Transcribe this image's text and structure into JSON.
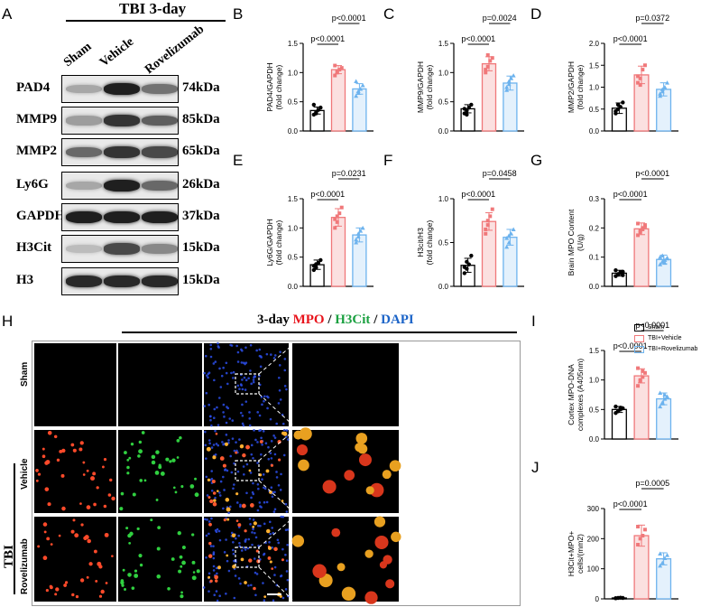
{
  "panels": {
    "A": "A",
    "B": "B",
    "C": "C",
    "D": "D",
    "E": "E",
    "F": "F",
    "G": "G",
    "H": "H",
    "I": "I",
    "J": "J"
  },
  "western_blot": {
    "title": "TBI 3-day",
    "groups": [
      "Sham",
      "Vehicle",
      "Rovelizumab"
    ],
    "rows": [
      {
        "protein": "PAD4",
        "size": "74kDa",
        "intensity": [
          0.3,
          0.95,
          0.55
        ]
      },
      {
        "protein": "MMP9",
        "size": "85kDa",
        "intensity": [
          0.35,
          0.85,
          0.65
        ]
      },
      {
        "protein": "MMP2",
        "size": "65kDa",
        "intensity": [
          0.6,
          0.85,
          0.75
        ]
      },
      {
        "protein": "Ly6G",
        "size": "26kDa",
        "intensity": [
          0.3,
          0.95,
          0.6
        ]
      },
      {
        "protein": "GAPDH",
        "size": "37kDa",
        "intensity": [
          0.95,
          0.95,
          0.95
        ]
      },
      {
        "protein": "H3Cit",
        "size": "15kDa",
        "intensity": [
          0.2,
          0.75,
          0.45
        ]
      },
      {
        "protein": "H3",
        "size": "15kDa",
        "intensity": [
          0.9,
          0.9,
          0.9
        ]
      }
    ]
  },
  "legend": {
    "items": [
      {
        "label": "Sham",
        "color": "#000000"
      },
      {
        "label": "TBI+Vehicle",
        "color": "#f0787a"
      },
      {
        "label": "TBI+Rovelizumab",
        "color": "#6db3ee"
      }
    ]
  },
  "if_panel": {
    "title_prefix": "3-day ",
    "stain1": "MPO",
    "sep1": " / ",
    "stain2": "H3Cit",
    "sep2": " / ",
    "stain3": "DAPI",
    "rows": [
      "Sham",
      "Vehicle",
      "Rovelizumab"
    ],
    "group_label": "TBI"
  },
  "chart_data": [
    {
      "panel": "B",
      "type": "bar",
      "ylabel": "PAD4/GAPDH\n(fold change)",
      "categories": [
        "Sham",
        "TBI+Vehicle",
        "TBI+Rovelizumab"
      ],
      "values": [
        0.35,
        1.05,
        0.72
      ],
      "errors": [
        0.06,
        0.07,
        0.09
      ],
      "points": [
        [
          0.28,
          0.32,
          0.36,
          0.4,
          0.45,
          0.3
        ],
        [
          0.95,
          1.0,
          1.05,
          1.08,
          1.12,
          1.02
        ],
        [
          0.6,
          0.68,
          0.72,
          0.78,
          0.85,
          0.65
        ]
      ],
      "ylim": [
        0,
        1.5
      ],
      "yticks": [
        0.0,
        0.5,
        1.0,
        1.5
      ],
      "comparisons": [
        {
          "from": 0,
          "to": 1,
          "label": "p<0.0001"
        },
        {
          "from": 1,
          "to": 2,
          "label": "p<0.0001"
        }
      ]
    },
    {
      "panel": "C",
      "type": "bar",
      "ylabel": "MMP9/GAPDH\n(fold change)",
      "categories": [
        "Sham",
        "TBI+Vehicle",
        "TBI+Rovelizumab"
      ],
      "values": [
        0.38,
        1.15,
        0.82
      ],
      "errors": [
        0.07,
        0.12,
        0.12
      ],
      "points": [
        [
          0.3,
          0.35,
          0.4,
          0.45,
          0.38,
          0.28
        ],
        [
          1.0,
          1.1,
          1.2,
          1.25,
          1.05,
          1.3
        ],
        [
          0.7,
          0.8,
          0.9,
          0.95,
          0.75,
          0.85
        ]
      ],
      "ylim": [
        0,
        1.5
      ],
      "yticks": [
        0.0,
        0.5,
        1.0,
        1.5
      ],
      "comparisons": [
        {
          "from": 0,
          "to": 1,
          "label": "p<0.0001"
        },
        {
          "from": 1,
          "to": 2,
          "label": "p=0.0024"
        }
      ]
    },
    {
      "panel": "D",
      "type": "bar",
      "ylabel": "MMP2/GAPDH\n(fold change)",
      "categories": [
        "Sham",
        "TBI+Vehicle",
        "TBI+Rovelizumab"
      ],
      "values": [
        0.52,
        1.28,
        0.95
      ],
      "errors": [
        0.12,
        0.2,
        0.15
      ],
      "points": [
        [
          0.4,
          0.5,
          0.55,
          0.65,
          0.45,
          0.6
        ],
        [
          1.1,
          1.2,
          1.4,
          1.5,
          1.25,
          1.05
        ],
        [
          0.8,
          0.9,
          1.0,
          1.1,
          0.85,
          0.95
        ]
      ],
      "ylim": [
        0,
        2.0
      ],
      "yticks": [
        0.0,
        0.5,
        1.0,
        1.5,
        2.0
      ],
      "comparisons": [
        {
          "from": 0,
          "to": 1,
          "label": "p<0.0001"
        },
        {
          "from": 1,
          "to": 2,
          "label": "p=0.0372"
        }
      ]
    },
    {
      "panel": "E",
      "type": "bar",
      "ylabel": "Ly6G/GAPDH\n(fold change)",
      "categories": [
        "Sham",
        "TBI+Vehicle",
        "TBI+Rovelizumab"
      ],
      "values": [
        0.37,
        1.18,
        0.88
      ],
      "errors": [
        0.08,
        0.15,
        0.12
      ],
      "points": [
        [
          0.28,
          0.32,
          0.4,
          0.45,
          0.35,
          0.38
        ],
        [
          1.0,
          1.1,
          1.25,
          1.35,
          1.15,
          1.2
        ],
        [
          0.75,
          0.85,
          0.95,
          1.0,
          0.8,
          0.9
        ]
      ],
      "ylim": [
        0,
        1.5
      ],
      "yticks": [
        0.0,
        0.5,
        1.0,
        1.5
      ],
      "comparisons": [
        {
          "from": 0,
          "to": 1,
          "label": "p<0.0001"
        },
        {
          "from": 1,
          "to": 2,
          "label": "p=0.0231"
        }
      ]
    },
    {
      "panel": "F",
      "type": "bar",
      "ylabel": "H3cit/H3\n(fold change)",
      "categories": [
        "Sham",
        "TBI+Vehicle",
        "TBI+Rovelizumab"
      ],
      "values": [
        0.24,
        0.74,
        0.56
      ],
      "errors": [
        0.08,
        0.1,
        0.09
      ],
      "points": [
        [
          0.15,
          0.2,
          0.25,
          0.35,
          0.22,
          0.28
        ],
        [
          0.6,
          0.7,
          0.8,
          0.88,
          0.65,
          0.75
        ],
        [
          0.45,
          0.5,
          0.6,
          0.65,
          0.55,
          0.58
        ]
      ],
      "ylim": [
        0,
        1.0
      ],
      "yticks": [
        0.0,
        0.5,
        1.0
      ],
      "comparisons": [
        {
          "from": 0,
          "to": 1,
          "label": "p<0.0001"
        },
        {
          "from": 1,
          "to": 2,
          "label": "p=0.0458"
        }
      ]
    },
    {
      "panel": "G",
      "type": "bar",
      "ylabel": "Brain MPO Content\n(U/g)",
      "categories": [
        "Sham",
        "TBI+Vehicle",
        "TBI+Rovelizumab"
      ],
      "values": [
        0.045,
        0.197,
        0.092
      ],
      "errors": [
        0.01,
        0.02,
        0.015
      ],
      "points": [
        [
          0.035,
          0.04,
          0.045,
          0.05,
          0.055,
          0.042,
          0.048,
          0.038
        ],
        [
          0.175,
          0.185,
          0.195,
          0.205,
          0.215,
          0.19,
          0.2,
          0.21
        ],
        [
          0.075,
          0.085,
          0.09,
          0.095,
          0.1,
          0.105,
          0.08,
          0.098
        ]
      ],
      "ylim": [
        0,
        0.3
      ],
      "yticks": [
        0.0,
        0.1,
        0.2,
        0.3
      ],
      "comparisons": [
        {
          "from": 0,
          "to": 1,
          "label": "p<0.0001"
        },
        {
          "from": 1,
          "to": 2,
          "label": "p<0.0001"
        }
      ]
    },
    {
      "panel": "I",
      "type": "bar",
      "ylabel": "Cortex MPO-DNA\ncomplexes (A405nm)",
      "categories": [
        "Sham",
        "TBI+Vehicle",
        "TBI+Rovelizumab"
      ],
      "values": [
        0.5,
        1.07,
        0.68
      ],
      "errors": [
        0.05,
        0.12,
        0.1
      ],
      "points": [
        [
          0.44,
          0.47,
          0.5,
          0.52,
          0.55,
          0.48,
          0.53
        ],
        [
          0.9,
          0.98,
          1.05,
          1.12,
          1.2,
          1.0,
          1.15
        ],
        [
          0.55,
          0.62,
          0.68,
          0.72,
          0.78,
          0.6,
          0.75
        ]
      ],
      "ylim": [
        0,
        1.5
      ],
      "yticks": [
        0.0,
        0.5,
        1.0,
        1.5
      ],
      "comparisons": [
        {
          "from": 0,
          "to": 1,
          "label": "p<0.0001"
        },
        {
          "from": 1,
          "to": 2,
          "label": "p<0.0001"
        }
      ]
    },
    {
      "panel": "J",
      "type": "bar",
      "ylabel": "H3Cit+MPO+\ncells/(mm2)",
      "categories": [
        "Sham",
        "TBI+Vehicle",
        "TBI+Rovelizumab"
      ],
      "values": [
        3,
        210,
        133
      ],
      "errors": [
        1,
        35,
        20
      ],
      "points": [
        [
          2,
          3,
          4,
          3,
          2
        ],
        [
          180,
          200,
          210,
          230,
          240
        ],
        [
          110,
          120,
          135,
          145,
          150
        ]
      ],
      "ylim": [
        0,
        300
      ],
      "yticks": [
        0,
        100,
        200,
        300
      ],
      "comparisons": [
        {
          "from": 0,
          "to": 1,
          "label": "p<0.0001"
        },
        {
          "from": 1,
          "to": 2,
          "label": "p=0.0005"
        }
      ]
    }
  ]
}
